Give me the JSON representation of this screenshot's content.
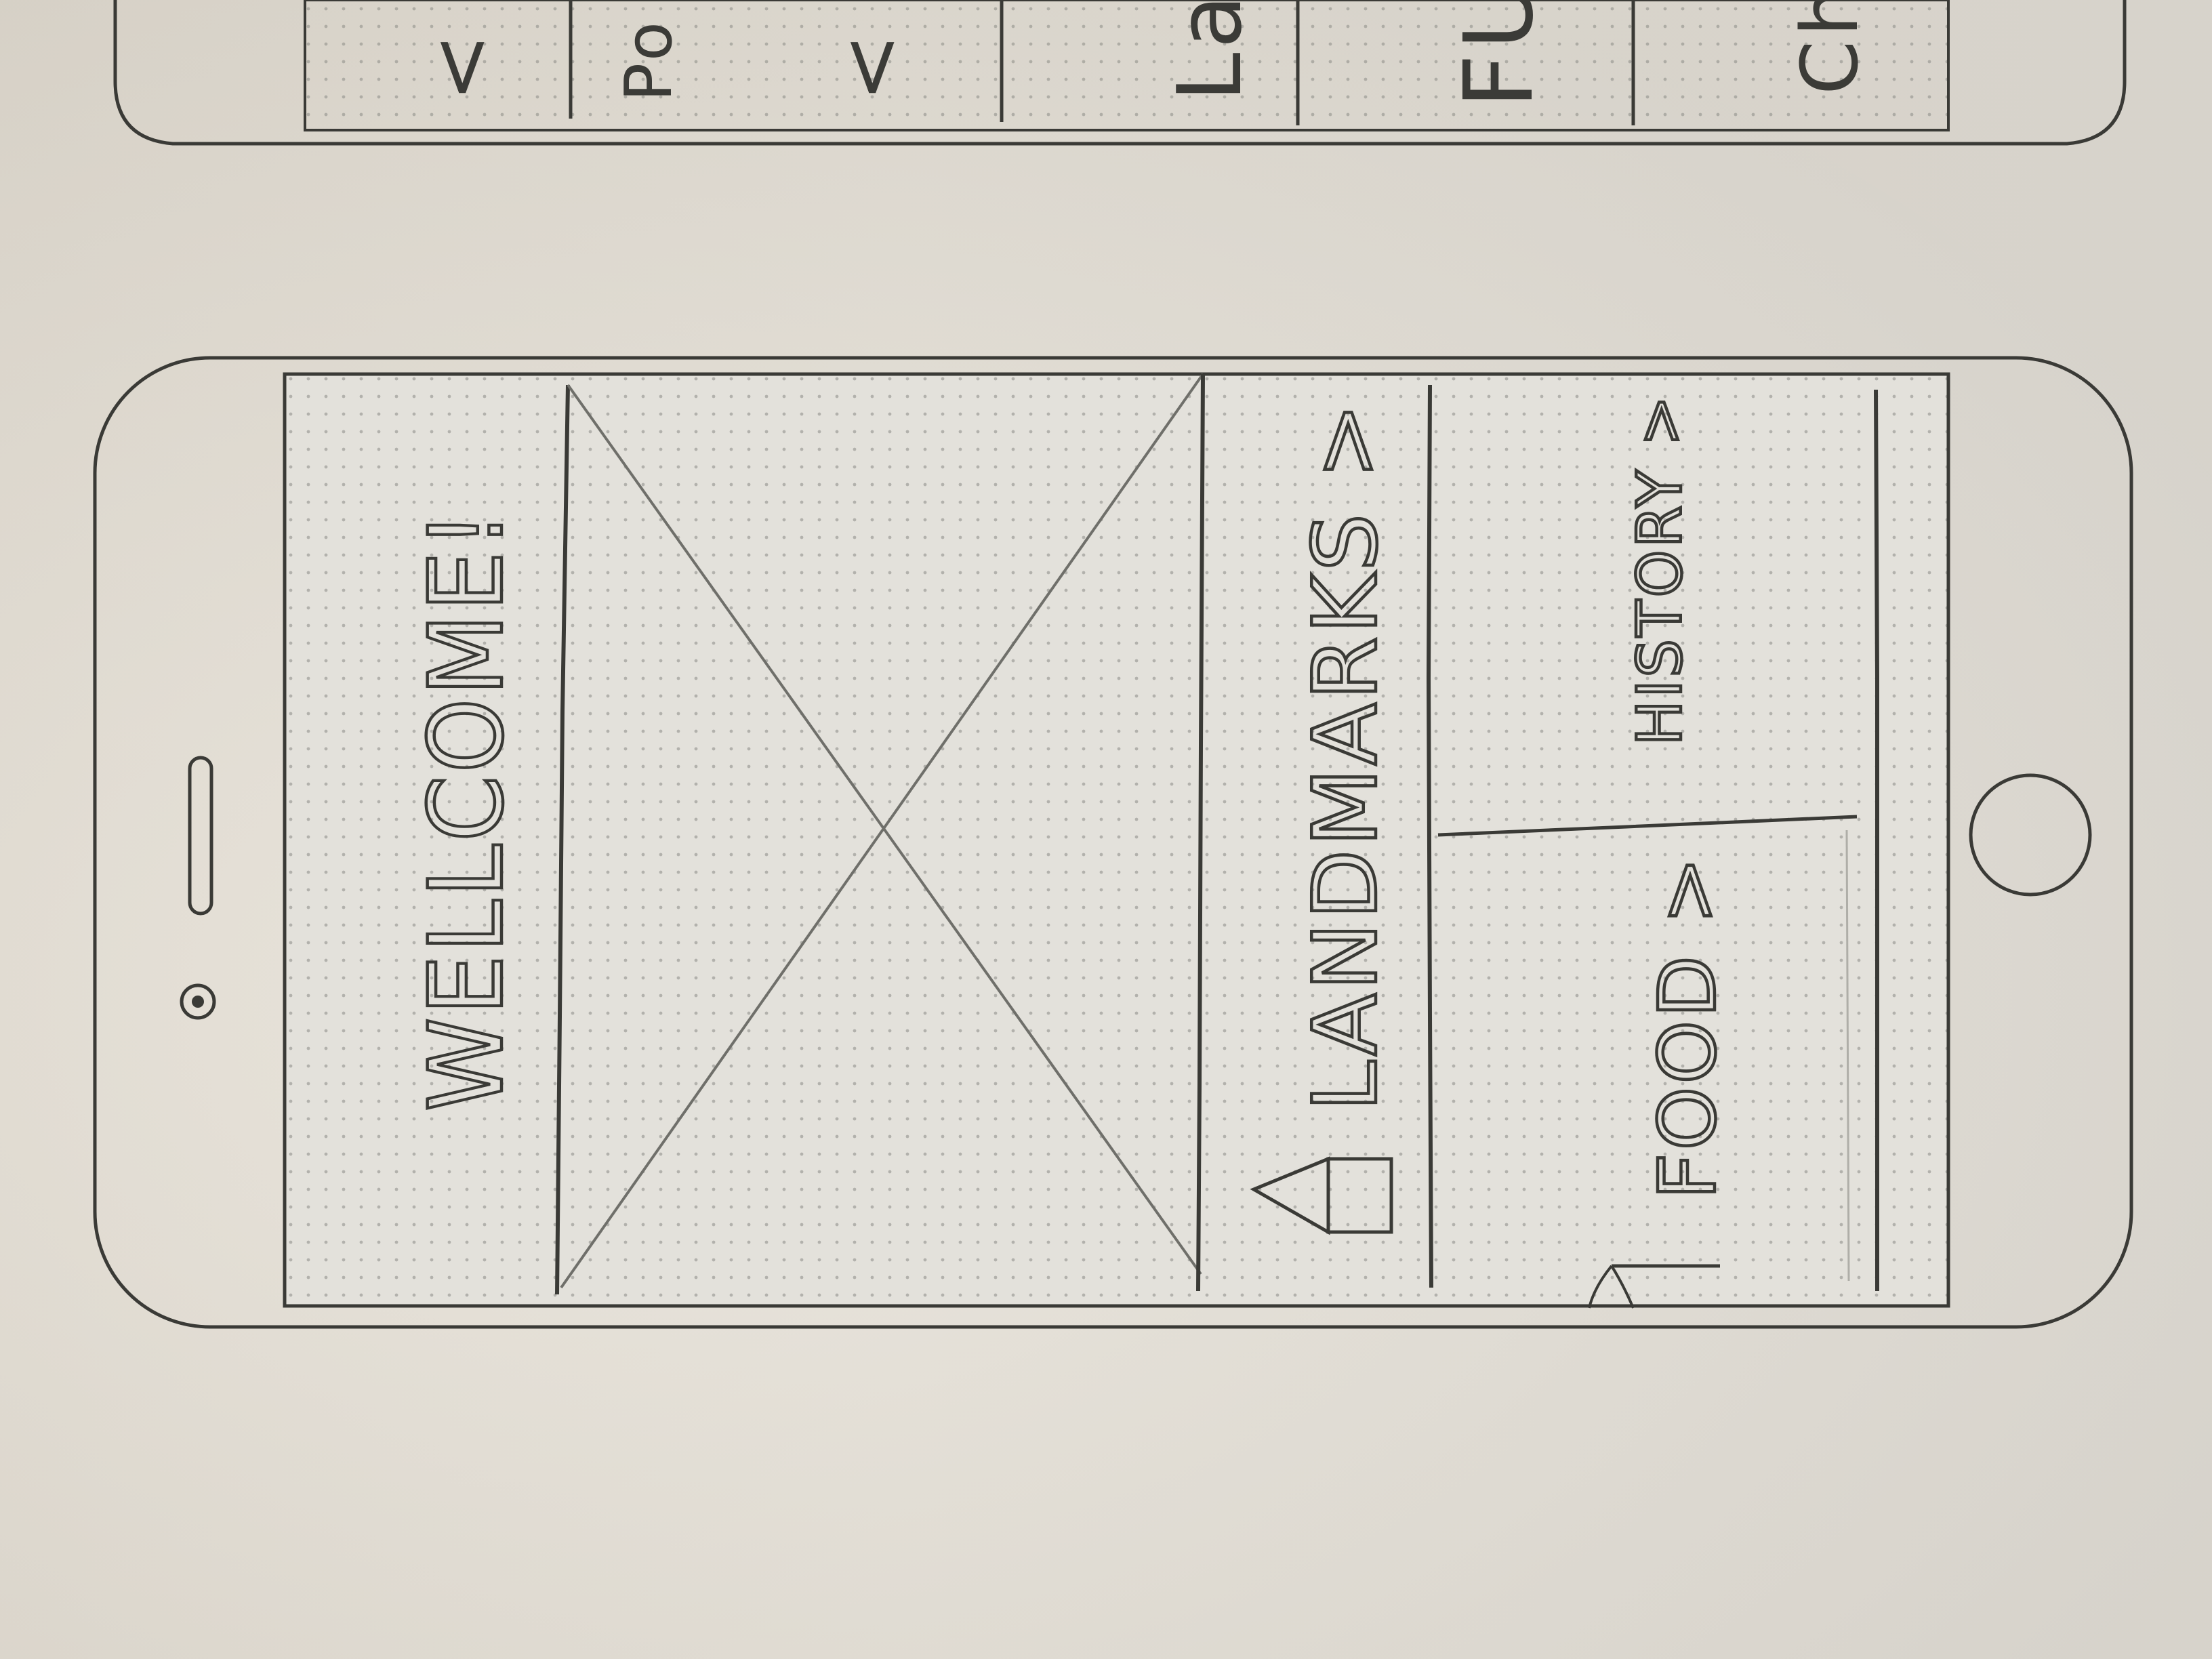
{
  "screen": {
    "title": "WELLCOME!",
    "hero_image_placeholder": "image-placeholder",
    "landmarks_label": "LANDMARKS >",
    "food_label": "FOOD >",
    "history_label": "HISTORY >"
  },
  "prev_screen": {
    "labels": [
      "< P",
      "Po",
      "<",
      "La",
      "FU",
      "Ch"
    ]
  },
  "icons": {
    "landmarks": "house-icon",
    "food": "fork-icon"
  },
  "colors": {
    "ink": "#3a3a36",
    "pencil": "#6f6f6a",
    "paper": "#e5e0d6",
    "screen": "#e2e0da"
  }
}
